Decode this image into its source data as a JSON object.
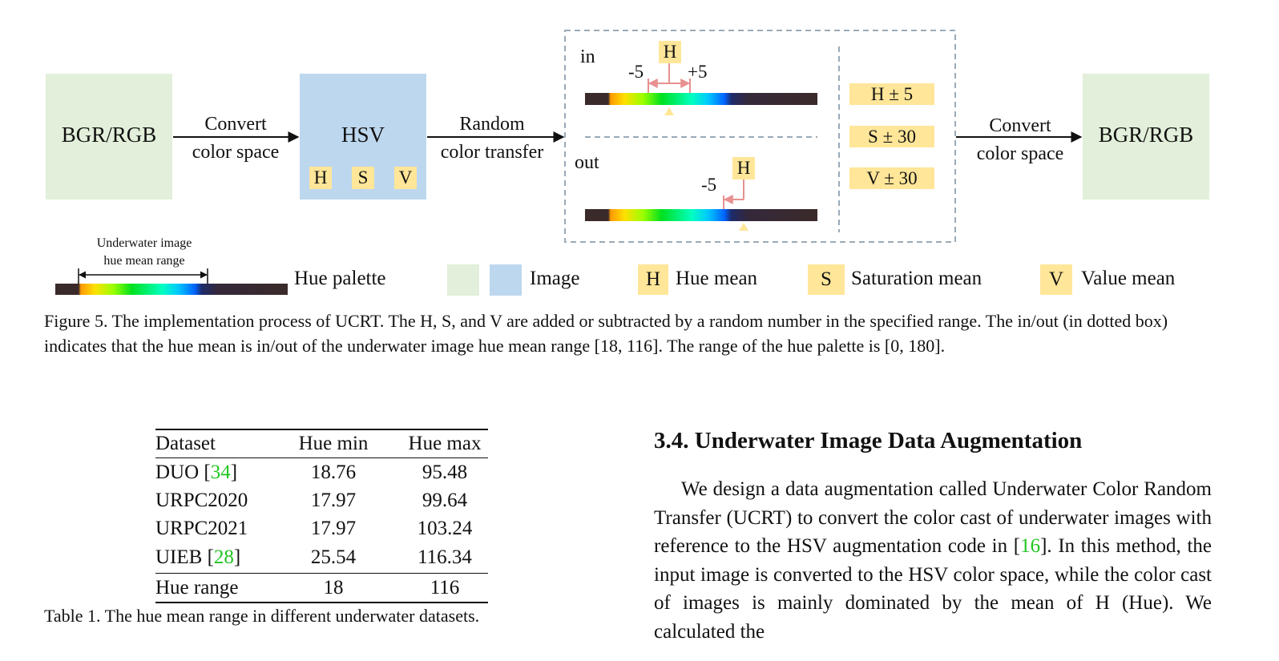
{
  "figure": {
    "left_box_label": "BGR/RGB",
    "arrow1_line1": "Convert",
    "arrow1_line2": "color space",
    "hsv_label": "HSV",
    "hsv_tags": [
      "H",
      "S",
      "V"
    ],
    "arrow2_line1": "Random",
    "arrow2_line2": "color transfer",
    "in_label": "in",
    "in_minus": "-5",
    "in_plus": "+5",
    "in_h": "H",
    "out_label": "out",
    "out_minus": "-5",
    "out_h": "H",
    "ranges": [
      "H ± 5",
      "S ± 30",
      "V ± 30"
    ],
    "arrow3_line1": "Convert",
    "arrow3_line2": "color space",
    "right_box_label": "BGR/RGB"
  },
  "legend": {
    "range_line1": "Underwater image",
    "range_line2": "hue mean range",
    "palette": "Hue palette",
    "image": "Image",
    "h_tag": "H",
    "hue_mean": "Hue mean",
    "s_tag": "S",
    "sat_mean": "Saturation mean",
    "v_tag": "V",
    "val_mean": "Value mean"
  },
  "fig_caption": "Figure 5.  The implementation process of UCRT. The H, S, and V are added or subtracted by a random number in the specified range. The in/out (in dotted box) indicates that the hue mean is in/out of the underwater image hue mean range [18, 116]. The range of the hue palette is [0, 180].",
  "table": {
    "headers": [
      "Dataset",
      "Hue min",
      "Hue max"
    ],
    "rows": [
      {
        "name": "DUO [",
        "ref": "34",
        "close": "]",
        "min": "18.76",
        "max": "95.48"
      },
      {
        "name": "URPC2020",
        "ref": "",
        "close": "",
        "min": "17.97",
        "max": "99.64"
      },
      {
        "name": "URPC2021",
        "ref": "",
        "close": "",
        "min": "17.97",
        "max": "103.24"
      },
      {
        "name": "UIEB [",
        "ref": "28",
        "close": "]",
        "min": "25.54",
        "max": "116.34"
      }
    ],
    "footer": {
      "name": "Hue range",
      "min": "18",
      "max": "116"
    },
    "caption": "Table 1.  The hue mean range in different underwater datasets."
  },
  "section": {
    "heading": "3.4. Underwater Image Data Augmentation",
    "para_a": "We design a data augmentation called Underwater Color Random Transfer (UCRT) to convert the color cast of underwater images with reference to the HSV augmentation code in [",
    "ref": "16",
    "para_b": "]. In this method, the input image is converted to the HSV color space, while the color cast of images is mainly dominated by the mean of H (Hue).  We calculated the"
  }
}
